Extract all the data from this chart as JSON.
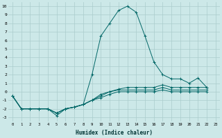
{
  "xlabel": "Humidex (Indice chaleur)",
  "bg_color": "#cce8e8",
  "grid_color": "#aacccc",
  "line_color": "#006666",
  "xlim": [
    -0.5,
    23.5
  ],
  "ylim": [
    -3.5,
    10.5
  ],
  "xticks": [
    0,
    1,
    2,
    3,
    4,
    5,
    6,
    7,
    8,
    9,
    10,
    11,
    12,
    13,
    14,
    15,
    16,
    17,
    18,
    19,
    20,
    21,
    22,
    23
  ],
  "yticks": [
    -3,
    -2,
    -1,
    0,
    1,
    2,
    3,
    4,
    5,
    6,
    7,
    8,
    9,
    10
  ],
  "series": [
    {
      "x": [
        0,
        1,
        2,
        3,
        4,
        5,
        6,
        7,
        8,
        9,
        10,
        11,
        12,
        13,
        14,
        15,
        16,
        17,
        18,
        19,
        20,
        21,
        22
      ],
      "y": [
        -0.5,
        -2,
        -2,
        -2,
        -2,
        -2.8,
        -2,
        -1.8,
        -1.5,
        2,
        6.5,
        8,
        9.5,
        10,
        9.3,
        6.5,
        3.5,
        2,
        1.5,
        1.5,
        1,
        1.6,
        0.5
      ]
    },
    {
      "x": [
        0,
        1,
        2,
        3,
        4,
        5,
        6,
        7,
        8,
        9,
        10,
        11,
        12,
        13,
        14,
        15,
        16,
        17,
        18,
        19,
        20,
        21,
        22
      ],
      "y": [
        -0.5,
        -2,
        -2,
        -2,
        -2,
        -2.5,
        -2,
        -1.8,
        -1.5,
        -1,
        -0.3,
        0,
        0.3,
        0.5,
        0.5,
        0.5,
        0.5,
        0.8,
        0.5,
        0.5,
        0.5,
        0.5,
        0.5
      ]
    },
    {
      "x": [
        0,
        1,
        2,
        3,
        4,
        5,
        6,
        7,
        8,
        9,
        10,
        11,
        12,
        13,
        14,
        15,
        16,
        17,
        18,
        19,
        20,
        21,
        22
      ],
      "y": [
        -0.5,
        -2,
        -2,
        -2,
        -2,
        -2.5,
        -2,
        -1.8,
        -1.5,
        -1,
        -0.5,
        0,
        0.2,
        0.2,
        0.2,
        0.2,
        0.2,
        0.5,
        0.2,
        0.2,
        0.2,
        0.2,
        0.2
      ]
    },
    {
      "x": [
        0,
        1,
        2,
        3,
        4,
        5,
        6,
        7,
        8,
        9,
        10,
        11,
        12,
        13,
        14,
        15,
        16,
        17,
        18,
        19,
        20,
        21,
        22
      ],
      "y": [
        -0.5,
        -2,
        -2,
        -2,
        -2,
        -2.5,
        -2,
        -1.8,
        -1.5,
        -1,
        -0.7,
        -0.3,
        0,
        0,
        0,
        0,
        0,
        0.2,
        0,
        0,
        0,
        0,
        0
      ]
    }
  ]
}
